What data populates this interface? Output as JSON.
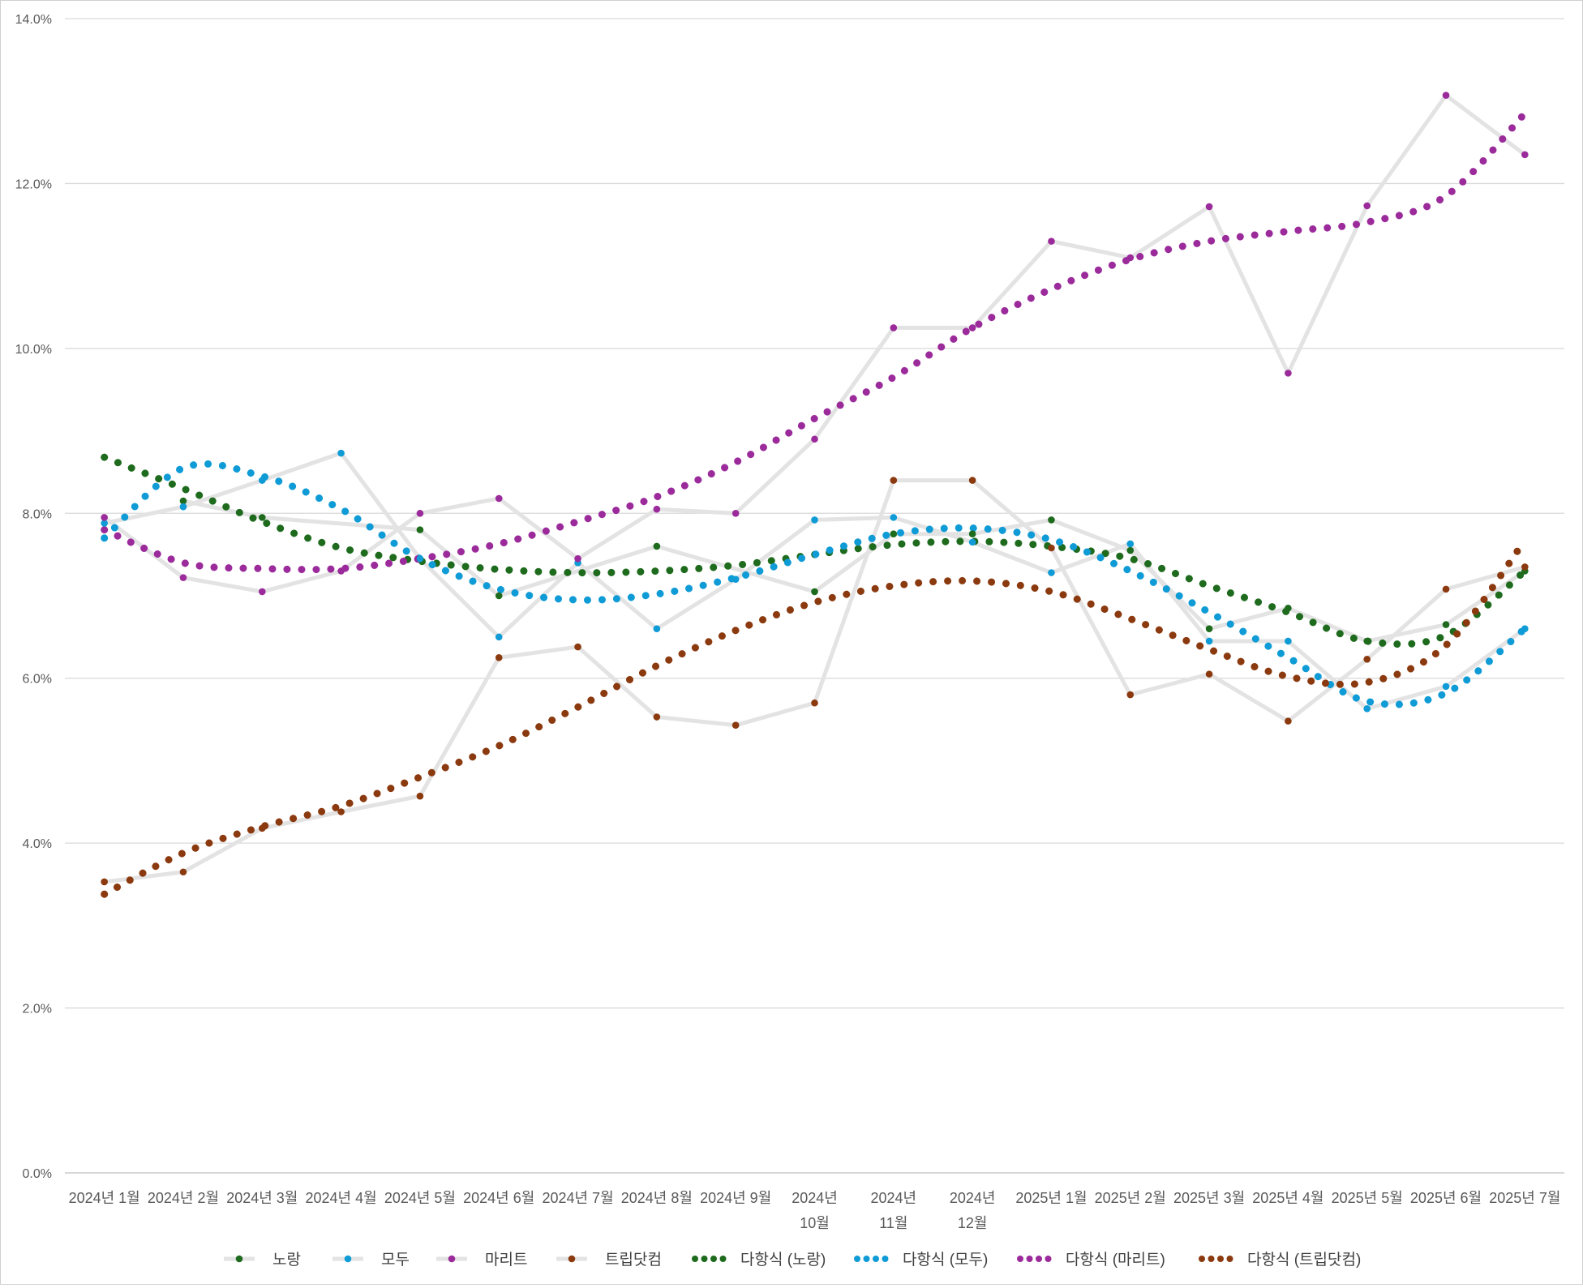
{
  "chart_data": {
    "type": "line",
    "title": "",
    "xlabel": "",
    "ylabel": "",
    "ylim": [
      0,
      14
    ],
    "grid": true,
    "legend_position": "bottom",
    "y_ticks": [
      "0.0%",
      "2.0%",
      "4.0%",
      "6.0%",
      "8.0%",
      "10.0%",
      "12.0%",
      "14.0%"
    ],
    "y_tick_values": [
      0,
      2,
      4,
      6,
      8,
      10,
      12,
      14
    ],
    "categories": [
      [
        "2024년 1월"
      ],
      [
        "2024년 2월"
      ],
      [
        "2024년 3월"
      ],
      [
        "2024년 4월"
      ],
      [
        "2024년 5월"
      ],
      [
        "2024년 6월"
      ],
      [
        "2024년 7월"
      ],
      [
        "2024년 8월"
      ],
      [
        "2024년 9월"
      ],
      [
        "2024년",
        "10월"
      ],
      [
        "2024년",
        "11월"
      ],
      [
        "2024년",
        "12월"
      ],
      [
        "2025년 1월"
      ],
      [
        "2025년 2월"
      ],
      [
        "2025년 3월"
      ],
      [
        "2025년 4월"
      ],
      [
        "2025년 5월"
      ],
      [
        "2025년 6월"
      ],
      [
        "2025년 7월"
      ]
    ],
    "series": [
      {
        "name": "노랑",
        "color": "#1e6b1e",
        "values": [
          null,
          8.15,
          7.95,
          null,
          7.8,
          7.0,
          null,
          7.6,
          null,
          7.05,
          7.75,
          7.75,
          7.92,
          7.55,
          6.6,
          6.85,
          6.45,
          6.65,
          7.3
        ]
      },
      {
        "name": "모두",
        "color": "#0f9bd6",
        "values": [
          7.88,
          8.08,
          8.4,
          8.73,
          7.45,
          6.5,
          7.4,
          6.6,
          7.2,
          7.92,
          7.95,
          7.65,
          7.28,
          7.63,
          6.45,
          6.45,
          5.63,
          5.9,
          6.6
        ]
      },
      {
        "name": "마리트",
        "color": "#9b2a9b",
        "values": [
          7.95,
          7.22,
          7.05,
          7.3,
          8.0,
          8.18,
          7.45,
          8.05,
          8.0,
          8.9,
          10.25,
          10.25,
          11.3,
          11.1,
          11.72,
          9.7,
          11.73,
          13.07,
          12.35
        ]
      },
      {
        "name": "트립닷컴",
        "color": "#8b3a0f",
        "values": [
          3.53,
          3.65,
          4.18,
          4.38,
          4.57,
          6.25,
          6.38,
          5.53,
          5.43,
          5.7,
          8.4,
          8.4,
          7.58,
          5.8,
          6.05,
          5.48,
          6.23,
          7.08,
          7.35
        ]
      }
    ],
    "trendlines": [
      {
        "name": "다항식 (노랑)",
        "color": "#1e6b1e",
        "of": "노랑"
      },
      {
        "name": "다항식 (모두)",
        "color": "#0f9bd6",
        "of": "모두"
      },
      {
        "name": "다항식 (마리트)",
        "color": "#9b2a9b",
        "of": "마리트"
      },
      {
        "name": "다항식 (트립닷컴)",
        "color": "#8b3a0f",
        "of": "트립닷컴"
      }
    ],
    "trend_values": {
      "노랑": [
        8.68,
        8.3,
        7.9,
        7.58,
        7.42,
        7.32,
        7.28,
        7.3,
        7.37,
        7.5,
        7.62,
        7.66,
        7.6,
        7.45,
        7.12,
        6.8,
        6.45,
        6.52,
        7.3
      ],
      "모두": [
        7.7,
        8.55,
        8.45,
        8.05,
        7.45,
        7.08,
        6.95,
        7.02,
        7.22,
        7.5,
        7.75,
        7.82,
        7.68,
        7.3,
        6.8,
        6.25,
        5.72,
        5.82,
        6.6
      ],
      "마리트": [
        7.8,
        7.4,
        7.33,
        7.33,
        7.45,
        7.63,
        7.9,
        8.2,
        8.62,
        9.15,
        9.65,
        10.25,
        10.72,
        11.08,
        11.3,
        11.42,
        11.53,
        11.85,
        12.85
      ],
      "트립닷컴": [
        3.38,
        3.88,
        4.2,
        4.45,
        4.8,
        5.18,
        5.65,
        6.15,
        6.58,
        6.92,
        7.12,
        7.18,
        7.05,
        6.72,
        6.35,
        6.02,
        5.95,
        6.4,
        7.67
      ]
    }
  }
}
